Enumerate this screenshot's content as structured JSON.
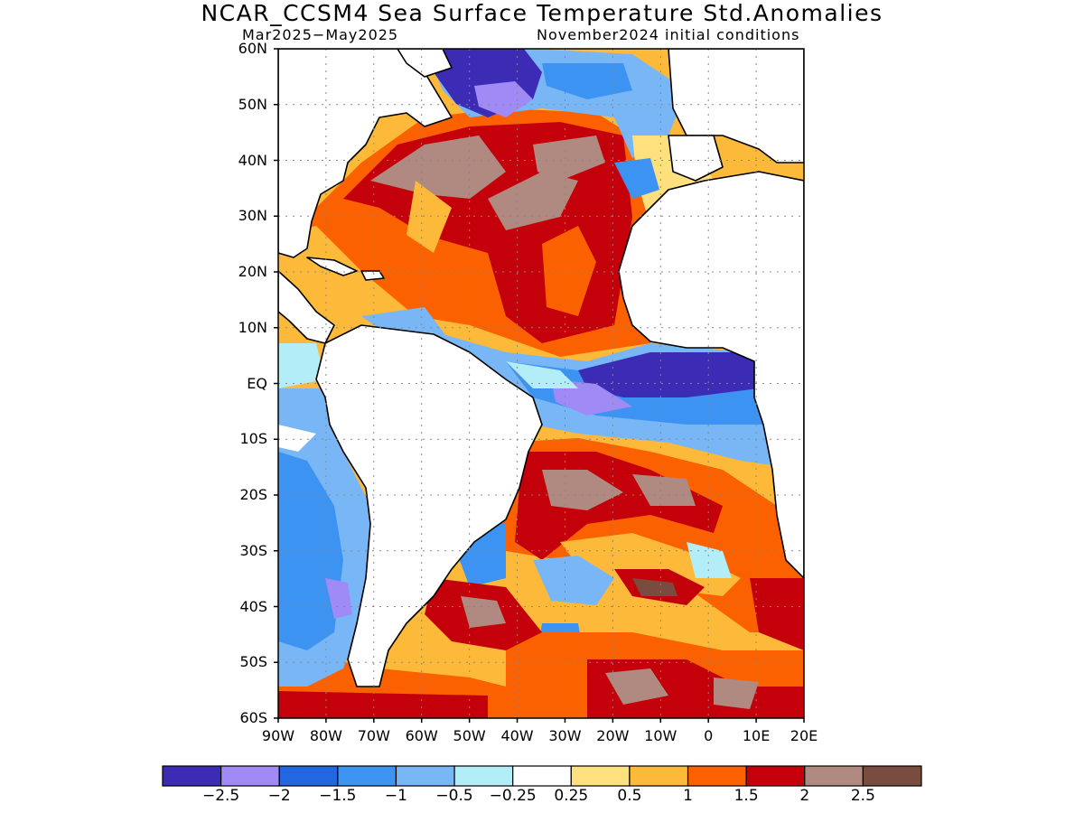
{
  "title": "NCAR_CCSM4 Sea Surface Temperature Std.Anomalies",
  "subtitle_left": "Mar2025−May2025",
  "subtitle_right": "November2024 initial conditions",
  "map": {
    "lat_labels": [
      "60N",
      "50N",
      "40N",
      "30N",
      "20N",
      "10N",
      "EQ",
      "10S",
      "20S",
      "30S",
      "40S",
      "50S",
      "60S"
    ],
    "lon_labels": [
      "90W",
      "80W",
      "70W",
      "60W",
      "50W",
      "40W",
      "30W",
      "20W",
      "10W",
      "0",
      "10E",
      "20E"
    ],
    "lon_range": [
      -90,
      20
    ],
    "lat_range": [
      -60,
      60
    ],
    "grid": "dotted",
    "land_color": "#ffffff",
    "coast_color": "#000000"
  },
  "colorbar": {
    "colors": [
      "#3b2bb5",
      "#a08af6",
      "#2267e0",
      "#3d93f2",
      "#78b6f5",
      "#b3edf8",
      "#ffffff",
      "#fee07e",
      "#fdb93a",
      "#fc6100",
      "#c4000a",
      "#b08a80",
      "#7a4c3f"
    ],
    "labels": [
      "−2.5",
      "−2",
      "−1.5",
      "−1",
      "−0.5",
      "−0.25",
      "0.25",
      "0.5",
      "1",
      "1.5",
      "2",
      "2.5"
    ]
  }
}
